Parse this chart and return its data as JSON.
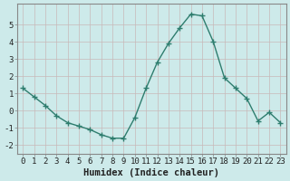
{
  "x": [
    0,
    1,
    2,
    3,
    4,
    5,
    6,
    7,
    8,
    9,
    10,
    11,
    12,
    13,
    14,
    15,
    16,
    17,
    18,
    19,
    20,
    21,
    22,
    23
  ],
  "y": [
    1.3,
    0.8,
    0.3,
    -0.3,
    -0.7,
    -0.9,
    -1.1,
    -1.4,
    -1.6,
    -1.6,
    -0.4,
    1.3,
    2.8,
    3.9,
    4.8,
    5.6,
    5.5,
    4.0,
    1.9,
    1.3,
    0.7,
    -0.6,
    -0.1,
    -0.7
  ],
  "line_color": "#2e7d6e",
  "marker": "+",
  "marker_size": 5,
  "marker_linewidth": 1.0,
  "bg_color": "#cdeaea",
  "grid_color": "#c8b8b8",
  "xlabel": "Humidex (Indice chaleur)",
  "xlim": [
    -0.5,
    23.5
  ],
  "ylim": [
    -2.5,
    6.2
  ],
  "yticks": [
    -2,
    -1,
    0,
    1,
    2,
    3,
    4,
    5
  ],
  "xticks": [
    0,
    1,
    2,
    3,
    4,
    5,
    6,
    7,
    8,
    9,
    10,
    11,
    12,
    13,
    14,
    15,
    16,
    17,
    18,
    19,
    20,
    21,
    22,
    23
  ],
  "tick_label_fontsize": 6.5,
  "xlabel_fontsize": 7.5,
  "line_width": 1.0,
  "spine_color": "#888888"
}
